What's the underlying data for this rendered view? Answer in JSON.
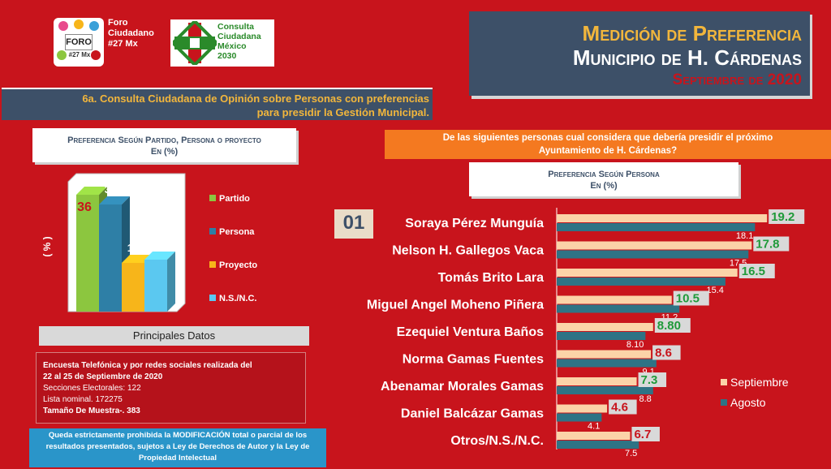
{
  "header": {
    "foro_logo": {
      "label": "FORO",
      "number": "#27 Mx",
      "caption": [
        "Foro",
        "Ciudadano",
        "#27 Mx"
      ]
    },
    "consulta_logo": {
      "caption": [
        "Consulta",
        "Ciudadana",
        "México",
        "2030"
      ]
    },
    "title_line1": "Medición de Preferencia",
    "title_line2": "Municipio de H. Cárdenas",
    "title_line3": "Septiembre de 2020",
    "subtitle_line1": "6a. Consulta Ciudadana de Opinión sobre Personas con preferencias",
    "subtitle_line2": "para presidir la Gestión Municipal."
  },
  "question": {
    "line1": "De las siguientes personas cual considera que debería presidir el próximo",
    "line2": "Ayuntamiento de H. Cárdenas?"
  },
  "badge": "01",
  "principales_datos": {
    "title": "Principales Datos",
    "line1": "Encuesta Telefónica y por redes sociales realizada del",
    "line2": "22 al 25 de Septiembre de 2020",
    "line3": "Secciones Electorales: 122",
    "line4": "Lista nominal. 172275",
    "line5": "Tamaño De Muestra-. 383"
  },
  "warning": {
    "line1": "Queda estrictamente prohibida la MODIFICACIÓN  total o parcial de los",
    "line2": "resultados presentados, sujetos a Ley de Derechos de Autor y la Ley de",
    "line3": "Propiedad Intelectual"
  },
  "colors": {
    "background": "#c8141c",
    "navy": "#3d5068",
    "gold": "#f2b63c",
    "orange": "#f47920",
    "septiembre": "#fbd3a8",
    "agosto": "#2e7385",
    "green_label": "#1f9a3a",
    "red_label": "#c8141c"
  },
  "chart_data": [
    {
      "type": "bar",
      "title_line1": "Preferencia Según Partido, Persona o proyecto",
      "title_line2": "En (%)",
      "ylabel": "( % )",
      "categories": [
        "Partido",
        "Persona",
        "Proyecto",
        "N.S./N.C."
      ],
      "values": [
        36,
        33,
        15,
        16
      ],
      "colors": [
        "#8cc63f",
        "#2e7fa6",
        "#f7b51a",
        "#5bc8f0"
      ],
      "ylim": [
        0,
        40
      ],
      "legend": "right"
    },
    {
      "type": "bar",
      "orientation": "horizontal",
      "title_line1": "Preferencia Según Persona",
      "title_line2": "En (%)",
      "categories": [
        "Soraya Pérez Munguía",
        "Nelson H. Gallegos Vaca",
        "Tomás Brito Lara",
        "Miguel Angel Moheno Piñera",
        "Ezequiel Ventura Baños",
        "Norma Gamas Fuentes",
        "Abenamar Morales Gamas",
        "Daniel Balcázar Gamas",
        "Otros/N.S./N.C."
      ],
      "series": [
        {
          "name": "Septiembre",
          "values": [
            19.2,
            17.8,
            16.5,
            10.5,
            8.8,
            8.6,
            7.3,
            4.6,
            6.7
          ],
          "labels": [
            "19.2",
            "17.8",
            "16.5",
            "10.5",
            "8.80",
            "8.6",
            "7.3",
            "4.6",
            "6.7"
          ],
          "label_colors": [
            "green",
            "green",
            "green",
            "green",
            "green",
            "red",
            "green",
            "red",
            "red"
          ]
        },
        {
          "name": "Agosto",
          "values": [
            18.1,
            17.5,
            15.4,
            11.2,
            8.1,
            9.1,
            8.8,
            4.1,
            7.5
          ],
          "labels": [
            "18.1",
            "17.5",
            "15.4",
            "11.2",
            "8.10",
            "9.1",
            "8.8",
            "4.1",
            "7.5"
          ]
        }
      ],
      "legend": "right"
    }
  ]
}
